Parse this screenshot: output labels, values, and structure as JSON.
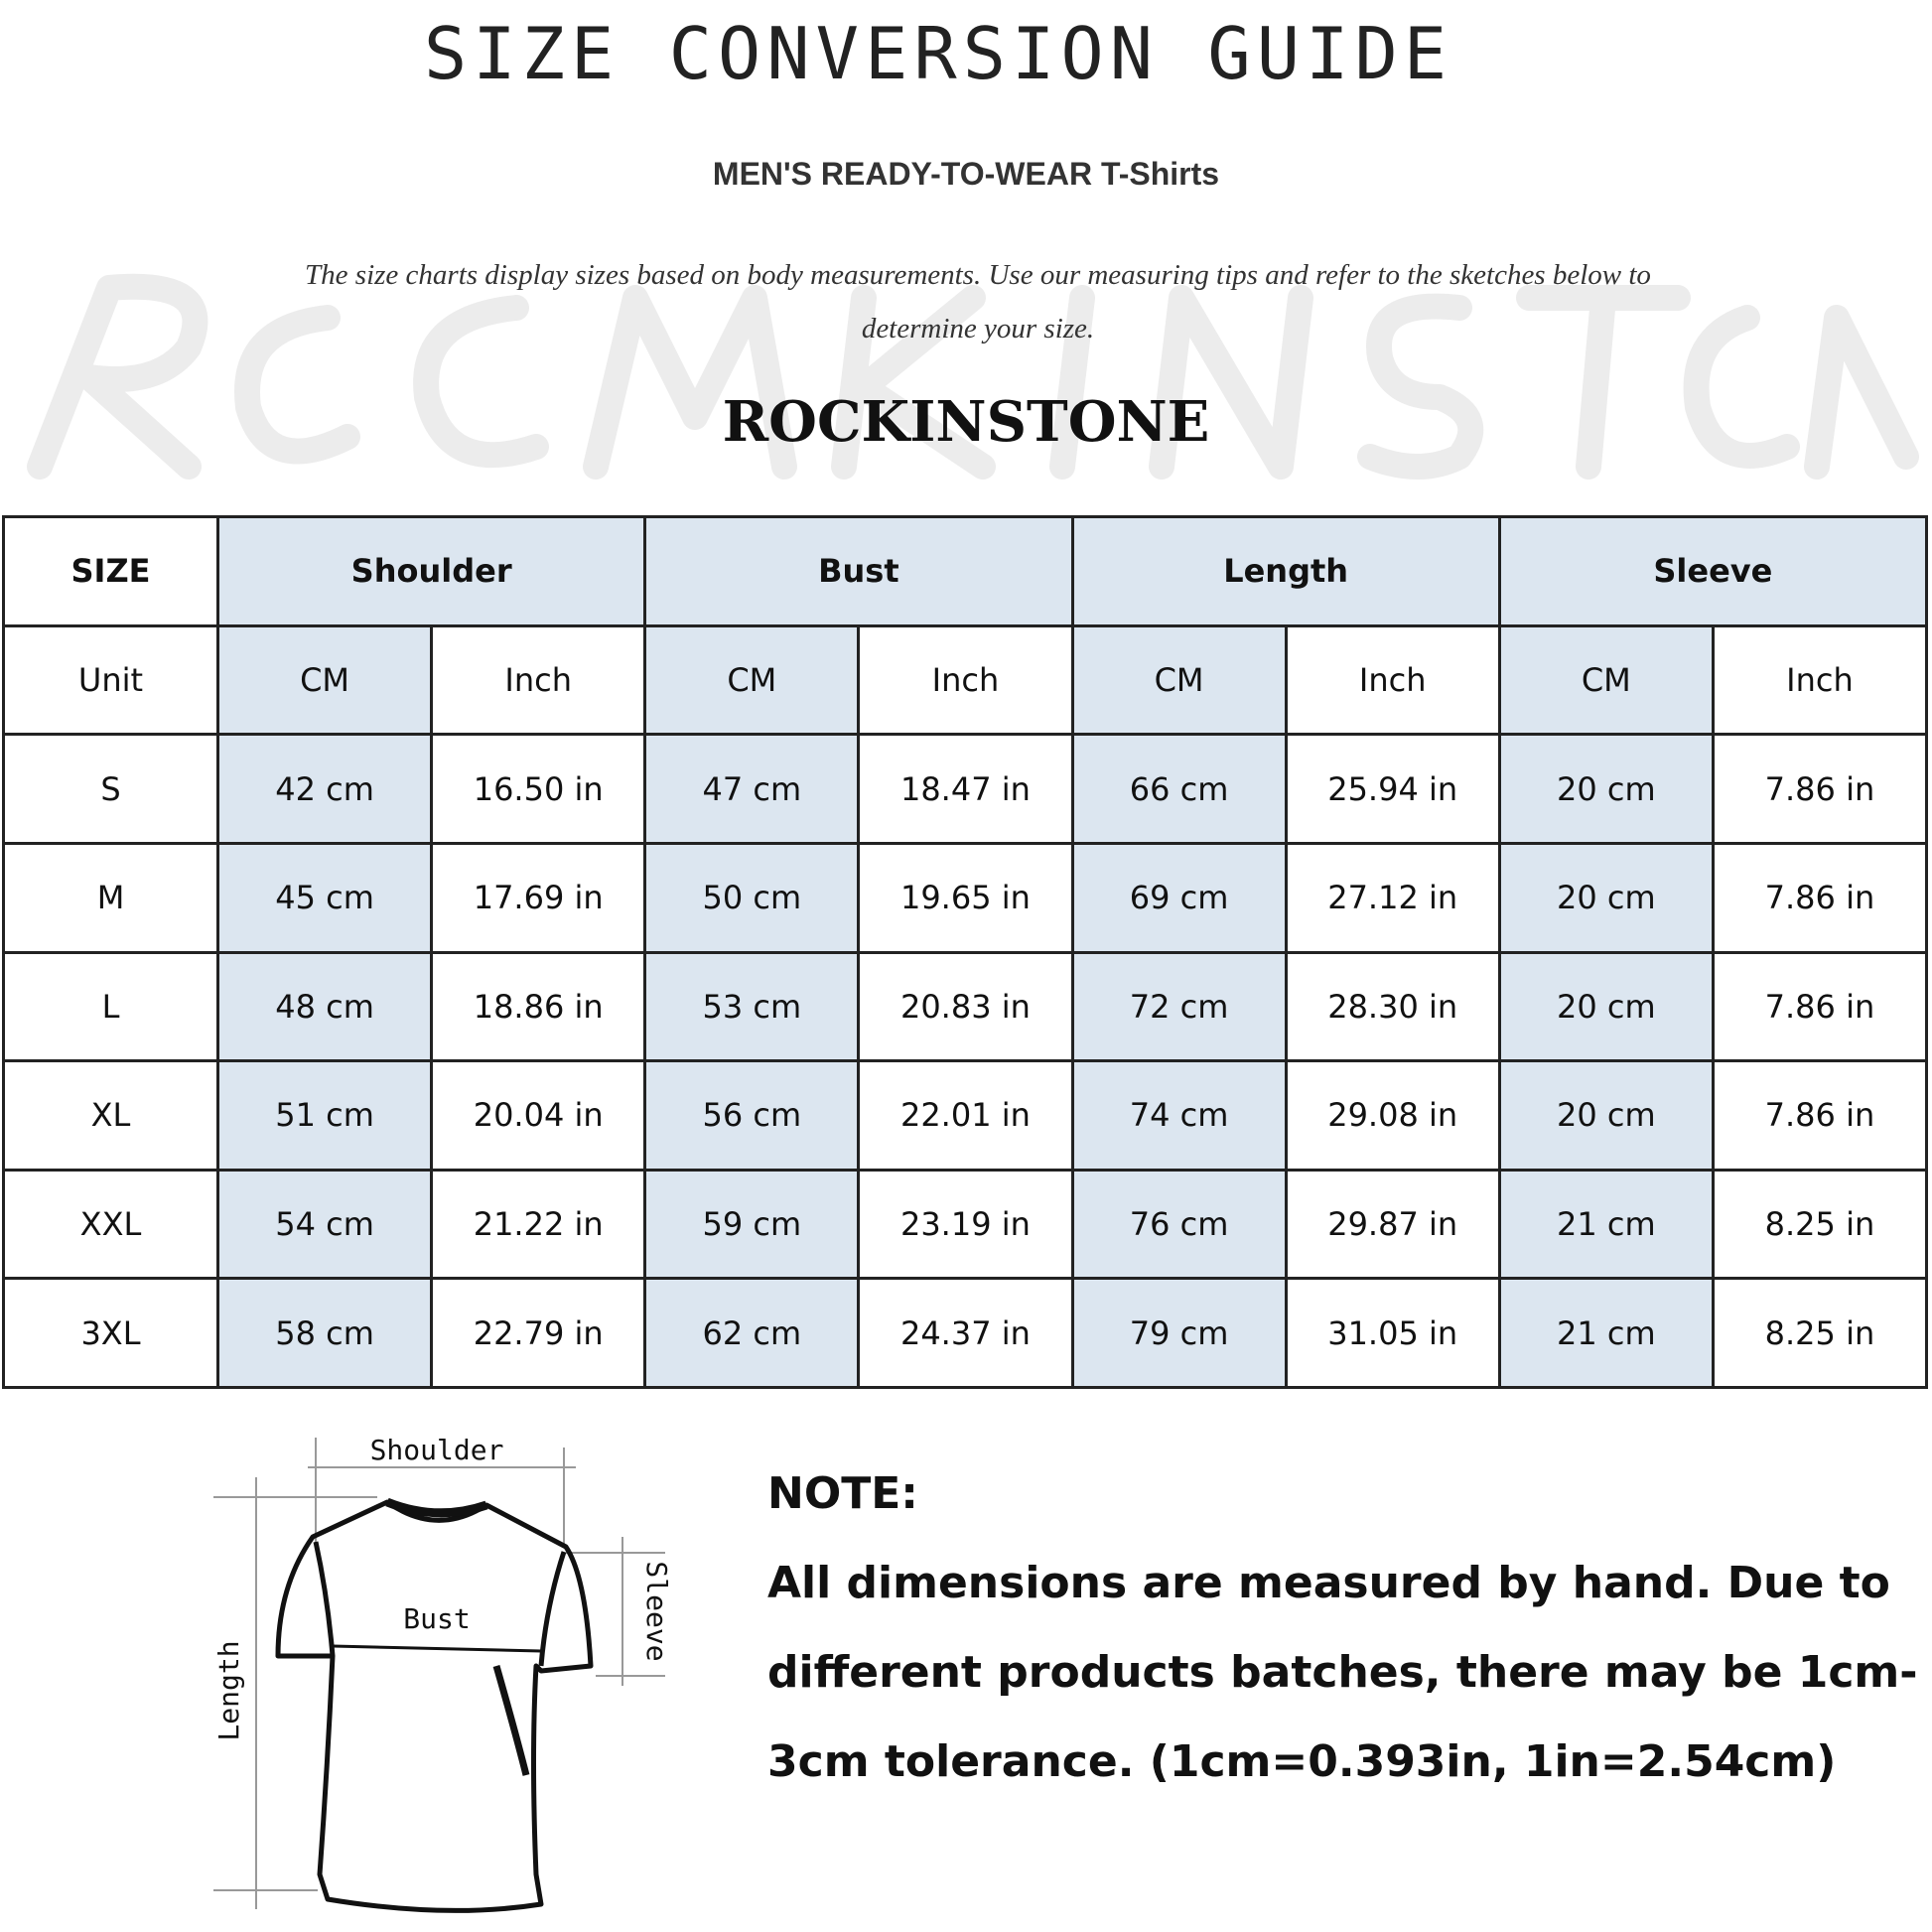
{
  "header": {
    "title": "SIZE CONVERSION GUIDE",
    "subtitle": "MEN'S READY-TO-WEAR T-Shirts",
    "description": "The size charts display sizes based on body measurements. Use our measuring tips and refer to the sketches below to determine your size.",
    "watermark": "ROCKINSTONE",
    "brand": "ROCKINSTONE"
  },
  "table": {
    "size_label": "SIZE",
    "groups": [
      "Shoulder",
      "Bust",
      "Length",
      "Sleeve"
    ],
    "unit_label": "Unit",
    "units": [
      "CM",
      "Inch",
      "CM",
      "Inch",
      "CM",
      "Inch",
      "CM",
      "Inch"
    ],
    "rows": [
      {
        "size": "S",
        "values": [
          "42 cm",
          "16.50 in",
          "47 cm",
          "18.47 in",
          "66 cm",
          "25.94 in",
          "20 cm",
          "7.86 in"
        ]
      },
      {
        "size": "M",
        "values": [
          "45 cm",
          "17.69 in",
          "50 cm",
          "19.65 in",
          "69 cm",
          "27.12 in",
          "20 cm",
          "7.86 in"
        ]
      },
      {
        "size": "L",
        "values": [
          "48 cm",
          "18.86 in",
          "53 cm",
          "20.83 in",
          "72 cm",
          "28.30 in",
          "20 cm",
          "7.86 in"
        ]
      },
      {
        "size": "XL",
        "values": [
          "51 cm",
          "20.04 in",
          "56 cm",
          "22.01 in",
          "74 cm",
          "29.08 in",
          "20 cm",
          "7.86 in"
        ]
      },
      {
        "size": "XXL",
        "values": [
          "54 cm",
          "21.22 in",
          "59 cm",
          "23.19 in",
          "76 cm",
          "29.87 in",
          "21 cm",
          "8.25 in"
        ]
      },
      {
        "size": "3XL",
        "values": [
          "58 cm",
          "22.79 in",
          "62 cm",
          "24.37 in",
          "79 cm",
          "31.05 in",
          "21 cm",
          "8.25 in"
        ]
      }
    ],
    "header_fill": "#dce6f0"
  },
  "diagram": {
    "shoulder": "Shoulder",
    "bust": "Bust",
    "sleeve": "Sleeve",
    "length": "Length"
  },
  "note": {
    "heading": "NOTE:",
    "text": "All dimensions are measured by hand. Due to different products batches, there may be 1cm-3cm tolerance. (1cm=0.393in, 1in=2.54cm)"
  }
}
